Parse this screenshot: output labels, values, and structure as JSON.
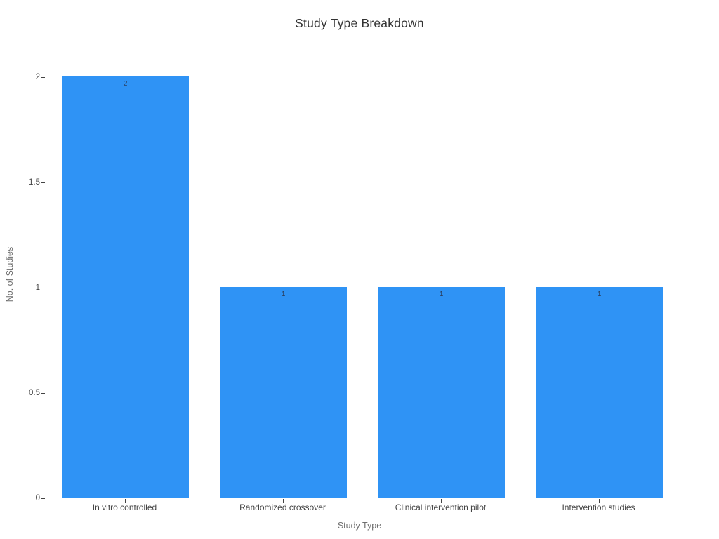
{
  "chart_data": {
    "type": "bar",
    "title": "Study Type Breakdown",
    "categories": [
      "In vitro controlled",
      "Randomized crossover",
      "Clinical intervention pilot",
      "Intervention studies"
    ],
    "values": [
      2,
      1,
      1,
      1
    ],
    "bar_labels": [
      "2",
      "1",
      "1",
      "1"
    ],
    "xlabel": "Study Type",
    "ylabel": "No. of Studies",
    "ytick_labels": [
      "0",
      "0.5",
      "1",
      "1.5",
      "2"
    ],
    "yticks": [
      0,
      0.5,
      1,
      1.5,
      2
    ],
    "ylim": [
      0,
      2.127
    ],
    "grid": false,
    "legend_position": "none",
    "bar_color": "#2f93f5",
    "bar_value_label_color": "#2a3f5f",
    "axis_line_color": "#d9d9d9",
    "tick_mark_color": "#444444",
    "tick_label_color": "#444444",
    "axis_title_color": "#6e6e6e",
    "title_color": "#333333",
    "bargap": 0.2
  }
}
